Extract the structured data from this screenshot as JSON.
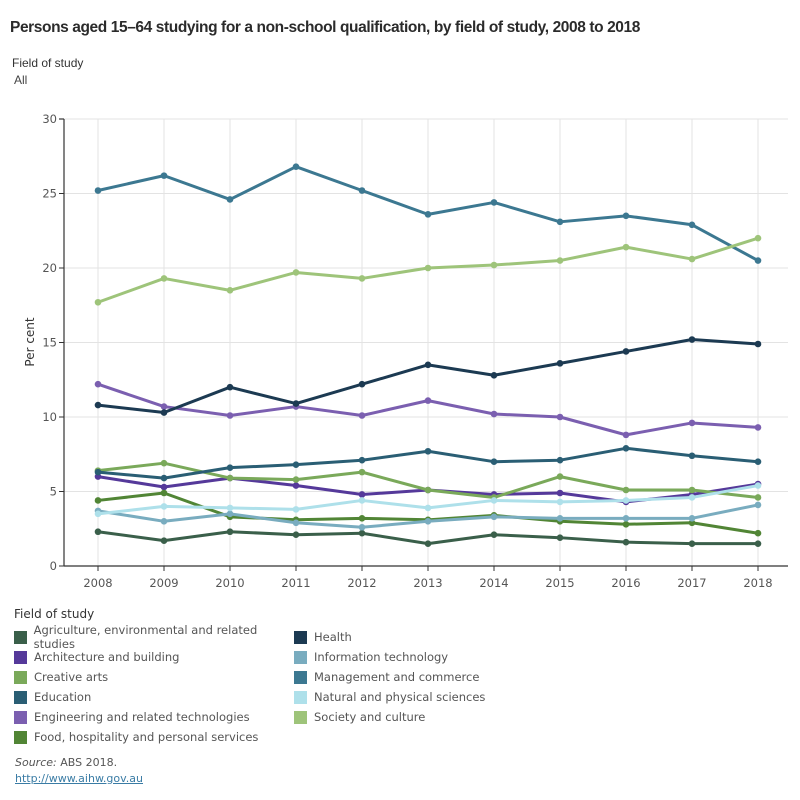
{
  "header": {
    "title": "Persons aged 15–64 studying for a non-school qualification, by field of study, 2008 to 2018",
    "filter_label": "Field of study",
    "filter_value": "All"
  },
  "footer": {
    "source_label": "Source:",
    "source_text": " ABS 2018.",
    "link_text": "http://www.aihw.gov.au"
  },
  "chart_data": {
    "type": "line",
    "title": "Persons aged 15–64 studying for a non-school qualification, by field of study, 2008 to 2018",
    "xlabel": "",
    "ylabel": "Per cent",
    "x": [
      "2008",
      "2009",
      "2010",
      "2011",
      "2012",
      "2013",
      "2014",
      "2015",
      "2016",
      "2017",
      "2018"
    ],
    "ylim": [
      0,
      30
    ],
    "yticks": [
      "0",
      "5",
      "10",
      "15",
      "20",
      "25",
      "30"
    ],
    "grid": true,
    "legend_title": "Field of study",
    "legend_position": "bottom",
    "series": [
      {
        "name": "Agriculture, environmental and related studies",
        "color": "#3a5f4a",
        "values": [
          2.3,
          1.7,
          2.3,
          2.1,
          2.2,
          1.5,
          2.1,
          1.9,
          1.6,
          1.5,
          1.5
        ]
      },
      {
        "name": "Architecture and building",
        "color": "#55399a",
        "values": [
          6.0,
          5.3,
          5.9,
          5.4,
          4.8,
          5.1,
          4.8,
          4.9,
          4.3,
          4.8,
          5.5
        ]
      },
      {
        "name": "Creative arts",
        "color": "#7aa95a",
        "values": [
          6.4,
          6.9,
          5.9,
          5.8,
          6.3,
          5.1,
          4.6,
          6.0,
          5.1,
          5.1,
          4.6
        ]
      },
      {
        "name": "Education",
        "color": "#2a5e74",
        "values": [
          6.3,
          5.9,
          6.6,
          6.8,
          7.1,
          7.7,
          7.0,
          7.1,
          7.9,
          7.4,
          7.0
        ]
      },
      {
        "name": "Engineering and related technologies",
        "color": "#7b5fb0",
        "values": [
          12.2,
          10.7,
          10.1,
          10.7,
          10.1,
          11.1,
          10.2,
          10.0,
          8.8,
          9.6,
          9.3
        ]
      },
      {
        "name": "Food, hospitality and personal services",
        "color": "#518535",
        "values": [
          4.4,
          4.9,
          3.3,
          3.1,
          3.2,
          3.1,
          3.4,
          3.0,
          2.8,
          2.9,
          2.2
        ]
      },
      {
        "name": "Health",
        "color": "#1c3a52",
        "values": [
          10.8,
          10.3,
          12.0,
          10.9,
          12.2,
          13.5,
          12.8,
          13.6,
          14.4,
          15.2,
          14.9
        ]
      },
      {
        "name": "Information technology",
        "color": "#79acbf",
        "values": [
          3.7,
          3.0,
          3.5,
          2.9,
          2.6,
          3.0,
          3.3,
          3.2,
          3.2,
          3.2,
          4.1
        ]
      },
      {
        "name": "Management and commerce",
        "color": "#3c7891",
        "values": [
          25.2,
          26.2,
          24.6,
          26.8,
          25.2,
          23.6,
          24.4,
          23.1,
          23.5,
          22.9,
          20.5
        ]
      },
      {
        "name": "Natural and physical sciences",
        "color": "#aee0ea",
        "values": [
          3.5,
          4.0,
          3.9,
          3.8,
          4.4,
          3.9,
          4.4,
          4.3,
          4.4,
          4.6,
          5.4
        ]
      },
      {
        "name": "Society and culture",
        "color": "#9ec47a",
        "values": [
          17.7,
          19.3,
          18.5,
          19.7,
          19.3,
          20.0,
          20.2,
          20.5,
          21.4,
          20.6,
          22.0
        ]
      }
    ]
  }
}
